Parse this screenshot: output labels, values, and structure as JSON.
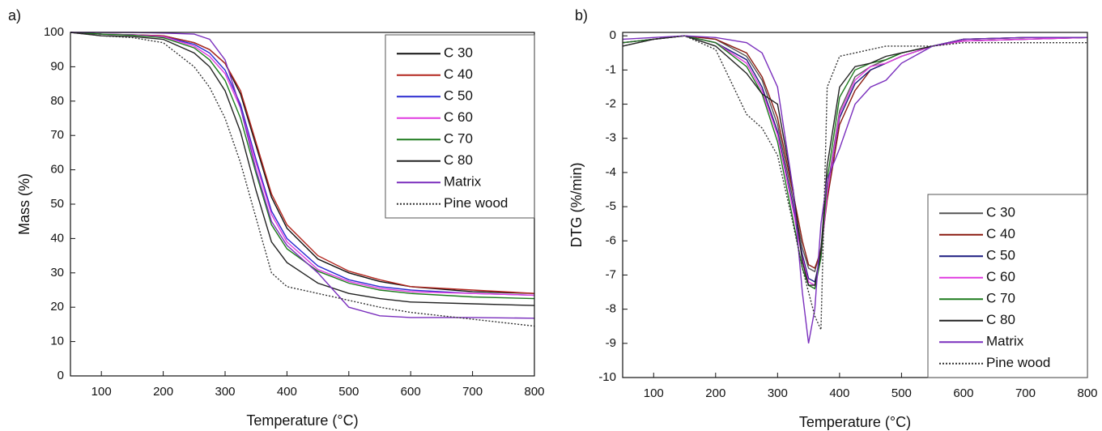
{
  "chart_data": [
    {
      "type": "line",
      "panel_label": "a)",
      "xlabel": "Temperature (°C)",
      "ylabel": "Mass (%)",
      "xlim": [
        50,
        800
      ],
      "ylim": [
        0,
        100
      ],
      "xticks": [
        100,
        200,
        300,
        400,
        500,
        600,
        700,
        800
      ],
      "yticks": [
        0,
        10,
        20,
        30,
        40,
        50,
        60,
        70,
        80,
        90,
        100
      ],
      "legend": "upper right",
      "x": [
        50,
        100,
        150,
        200,
        250,
        275,
        300,
        325,
        350,
        375,
        400,
        450,
        500,
        550,
        600,
        700,
        800
      ],
      "series": [
        {
          "name": "C 30",
          "color": "#111111",
          "linestyle": "solid",
          "values": [
            100,
            99.5,
            99.3,
            99,
            97,
            95,
            91,
            82,
            67,
            52,
            43,
            34,
            30,
            27.5,
            26,
            24.5,
            24
          ]
        },
        {
          "name": "C 40",
          "color": "#b3261e",
          "linestyle": "solid",
          "values": [
            100,
            99.5,
            99.3,
            99,
            97,
            95,
            91,
            83,
            68,
            53,
            44,
            35,
            30.5,
            28,
            26,
            25,
            24
          ]
        },
        {
          "name": "C 50",
          "color": "#2a2ad0",
          "linestyle": "solid",
          "values": [
            100,
            99.5,
            99.3,
            98.8,
            96.5,
            94,
            89,
            79,
            63,
            48,
            40,
            32,
            28,
            26,
            25,
            24,
            23.5
          ]
        },
        {
          "name": "C 60",
          "color": "#e03ce0",
          "linestyle": "solid",
          "values": [
            100,
            99.5,
            99.3,
            98.8,
            96,
            93,
            88,
            78,
            62,
            47,
            39,
            31,
            27.5,
            25.5,
            24.5,
            24,
            23.5
          ]
        },
        {
          "name": "C 70",
          "color": "#1d7a1d",
          "linestyle": "solid",
          "values": [
            100,
            99.5,
            99.2,
            98.5,
            95.5,
            92,
            86,
            75,
            59,
            44,
            37,
            30.5,
            27,
            25,
            24,
            23,
            22.5
          ]
        },
        {
          "name": "C 80",
          "color": "#222222",
          "linestyle": "solid",
          "values": [
            100,
            99,
            98.8,
            98,
            94,
            90,
            83,
            71,
            54,
            39,
            33,
            27,
            24,
            22.5,
            21.5,
            21,
            20.5
          ]
        },
        {
          "name": "Matrix",
          "color": "#7a2fbd",
          "linestyle": "solid",
          "values": [
            100,
            100,
            100,
            99.8,
            99.5,
            98,
            92,
            78,
            60,
            45,
            38,
            30,
            20,
            17.5,
            17,
            17,
            16.8
          ]
        },
        {
          "name": "Pine wood",
          "color": "#333333",
          "linestyle": "dotted",
          "values": [
            100,
            99,
            98.5,
            97,
            90,
            84,
            75,
            62,
            46,
            30,
            26,
            24,
            22,
            20,
            18.5,
            16.5,
            14.5
          ]
        }
      ]
    },
    {
      "type": "line",
      "panel_label": "b)",
      "xlabel": "Temperature (°C)",
      "ylabel": "DTG (%/min)",
      "xlim": [
        50,
        800
      ],
      "ylim": [
        -10,
        0.1
      ],
      "xticks": [
        100,
        200,
        300,
        400,
        500,
        600,
        700,
        800
      ],
      "yticks": [
        -10,
        -9,
        -8,
        -7,
        -6,
        -5,
        -4,
        -3,
        -2,
        -1,
        0
      ],
      "legend": "lower right",
      "x": [
        50,
        100,
        150,
        200,
        250,
        275,
        300,
        325,
        340,
        350,
        360,
        370,
        380,
        400,
        425,
        450,
        475,
        500,
        550,
        600,
        700,
        800
      ],
      "series": [
        {
          "name": "C 30",
          "color": "#555555",
          "linestyle": "solid",
          "values": [
            -0.2,
            -0.1,
            0,
            -0.1,
            -0.6,
            -1.3,
            -2.6,
            -4.8,
            -6.2,
            -6.8,
            -6.9,
            -6.2,
            -4.5,
            -2.2,
            -1.2,
            -0.9,
            -0.7,
            -0.5,
            -0.3,
            -0.1,
            -0.05,
            -0.05
          ]
        },
        {
          "name": "C 40",
          "color": "#8b1a10",
          "linestyle": "solid",
          "values": [
            -0.2,
            -0.1,
            0,
            -0.1,
            -0.5,
            -1.2,
            -2.4,
            -4.6,
            -6,
            -6.7,
            -6.8,
            -6.3,
            -4.8,
            -2.6,
            -1.6,
            -1,
            -0.8,
            -0.6,
            -0.3,
            -0.15,
            -0.1,
            -0.05
          ]
        },
        {
          "name": "C 50",
          "color": "#1c1c80",
          "linestyle": "solid",
          "values": [
            -0.2,
            -0.1,
            0,
            -0.2,
            -0.7,
            -1.5,
            -2.8,
            -5,
            -6.4,
            -7.1,
            -7.2,
            -6.4,
            -4.6,
            -2.4,
            -1.4,
            -1,
            -0.8,
            -0.6,
            -0.3,
            -0.15,
            -0.1,
            -0.05
          ]
        },
        {
          "name": "C 60",
          "color": "#e03ce0",
          "linestyle": "solid",
          "values": [
            -0.2,
            -0.1,
            0,
            -0.2,
            -0.8,
            -1.6,
            -2.9,
            -5.1,
            -6.5,
            -7.2,
            -7.3,
            -6.5,
            -4.6,
            -2.3,
            -1.3,
            -0.9,
            -0.8,
            -0.6,
            -0.3,
            -0.15,
            -0.1,
            -0.05
          ]
        },
        {
          "name": "C 70",
          "color": "#1d7a1d",
          "linestyle": "solid",
          "values": [
            -0.2,
            -0.1,
            0,
            -0.2,
            -0.9,
            -1.7,
            -3.1,
            -5.4,
            -6.8,
            -7.3,
            -7.4,
            -6.5,
            -4.2,
            -1.8,
            -1,
            -0.8,
            -0.7,
            -0.5,
            -0.3,
            -0.1,
            -0.05,
            -0.05
          ]
        },
        {
          "name": "C 80",
          "color": "#222222",
          "linestyle": "solid",
          "values": [
            -0.3,
            -0.1,
            0,
            -0.3,
            -1.1,
            -1.7,
            -2,
            -4.5,
            -6.6,
            -7.3,
            -7.3,
            -6.3,
            -3.8,
            -1.5,
            -0.9,
            -0.8,
            -0.6,
            -0.5,
            -0.3,
            -0.1,
            -0.05,
            -0.05
          ]
        },
        {
          "name": "Matrix",
          "color": "#7a2fbd",
          "linestyle": "solid",
          "values": [
            -0.1,
            -0.05,
            0,
            -0.05,
            -0.2,
            -0.5,
            -1.5,
            -4.5,
            -7.5,
            -9,
            -8,
            -5.5,
            -4.2,
            -3.3,
            -2,
            -1.5,
            -1.3,
            -0.8,
            -0.3,
            -0.1,
            -0.05,
            -0.05
          ]
        },
        {
          "name": "Pine wood",
          "color": "#333333",
          "linestyle": "dotted",
          "values": [
            -0.3,
            -0.1,
            0,
            -0.4,
            -2.3,
            -2.7,
            -3.5,
            -5.5,
            -6.8,
            -7.5,
            -8.2,
            -8.6,
            -1.5,
            -0.6,
            -0.5,
            -0.4,
            -0.3,
            -0.3,
            -0.3,
            -0.2,
            -0.2,
            -0.2
          ]
        }
      ]
    }
  ]
}
